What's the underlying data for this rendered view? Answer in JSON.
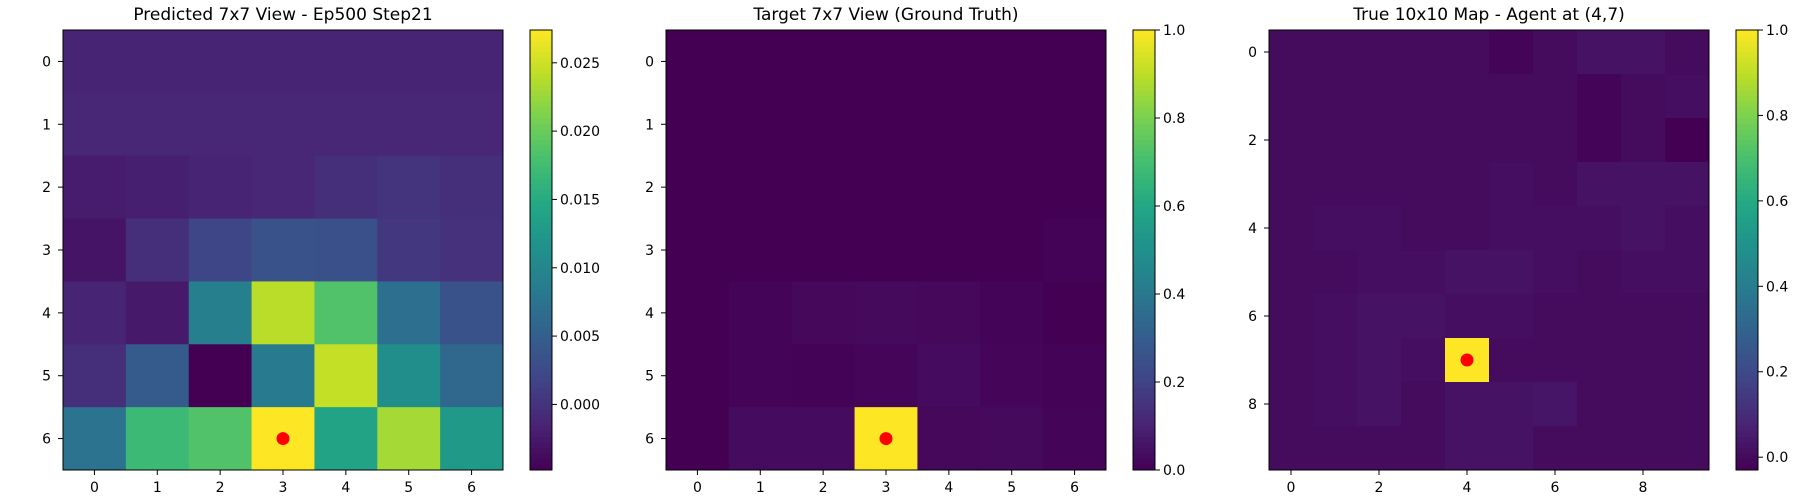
{
  "chart_data": [
    {
      "type": "heatmap",
      "title": "Predicted 7x7 View - Ep500 Step21",
      "xticks": [
        0,
        1,
        2,
        3,
        4,
        5,
        6
      ],
      "yticks": [
        0,
        1,
        2,
        3,
        4,
        5,
        6
      ],
      "colorbar": {
        "vmin": -0.0048,
        "vmax": 0.0274,
        "ticks": [
          0.0,
          0.005,
          0.01,
          0.015,
          0.02,
          0.025
        ],
        "tick_labels": [
          "0.000",
          "0.005",
          "0.010",
          "0.015",
          "0.020",
          "0.025"
        ]
      },
      "values": [
        [
          -0.0015,
          -0.0015,
          -0.0015,
          -0.0015,
          -0.0015,
          -0.0015,
          -0.0015
        ],
        [
          -0.0012,
          -0.0012,
          -0.0012,
          -0.0012,
          -0.0012,
          -0.0012,
          -0.0012
        ],
        [
          -0.0022,
          -0.002,
          -0.0015,
          -0.0012,
          -0.0005,
          0.0,
          -0.0005
        ],
        [
          -0.003,
          -0.0005,
          0.002,
          0.0035,
          0.0032,
          0.0005,
          -0.0002
        ],
        [
          -0.0015,
          -0.0025,
          0.009,
          0.024,
          0.0185,
          0.007,
          0.0035
        ],
        [
          -0.0005,
          0.0045,
          -0.0048,
          0.0085,
          0.0245,
          0.011,
          0.006
        ],
        [
          0.0075,
          0.017,
          0.0185,
          0.0274,
          0.014,
          0.023,
          0.0125
        ]
      ],
      "marker": {
        "col": 3,
        "row": 6,
        "color": "#ff0000"
      }
    },
    {
      "type": "heatmap",
      "title": "Target 7x7 View (Ground Truth)",
      "xticks": [
        0,
        1,
        2,
        3,
        4,
        5,
        6
      ],
      "yticks": [
        0,
        1,
        2,
        3,
        4,
        5,
        6
      ],
      "colorbar": {
        "vmin": 0.0,
        "vmax": 1.0,
        "ticks": [
          0.0,
          0.2,
          0.4,
          0.6,
          0.8,
          1.0
        ],
        "tick_labels": [
          "0.0",
          "0.2",
          "0.4",
          "0.6",
          "0.8",
          "1.0"
        ]
      },
      "values": [
        [
          0.0,
          0.0,
          0.0,
          0.0,
          0.0,
          0.0,
          0.0
        ],
        [
          0.0,
          0.0,
          0.0,
          0.0,
          0.0,
          0.0,
          0.0
        ],
        [
          0.0,
          0.0,
          0.0,
          0.0,
          0.0,
          0.0,
          0.0
        ],
        [
          0.0,
          0.0,
          0.0,
          0.0,
          0.0,
          0.0,
          0.005
        ],
        [
          0.0,
          0.01,
          0.02,
          0.025,
          0.02,
          0.01,
          0.0
        ],
        [
          0.0,
          0.01,
          0.005,
          0.015,
          0.03,
          0.015,
          0.005
        ],
        [
          0.0,
          0.03,
          0.03,
          1.0,
          0.02,
          0.025,
          0.01
        ]
      ],
      "marker": {
        "col": 3,
        "row": 6,
        "color": "#ff0000"
      }
    },
    {
      "type": "heatmap",
      "title": "True 10x10 Map - Agent at (4,7)",
      "xticks": [
        0,
        2,
        4,
        6,
        8
      ],
      "yticks": [
        0,
        2,
        4,
        6,
        8
      ],
      "colorbar": {
        "vmin": -0.03,
        "vmax": 1.0,
        "ticks": [
          0.0,
          0.2,
          0.4,
          0.6,
          0.8,
          1.0
        ],
        "tick_labels": [
          "0.0",
          "0.2",
          "0.4",
          "0.6",
          "0.8",
          "1.0"
        ]
      },
      "values": [
        [
          0.0,
          0.0,
          0.0,
          0.0,
          0.0,
          -0.02,
          0.0,
          0.02,
          0.02,
          0.0
        ],
        [
          0.0,
          0.0,
          0.0,
          0.0,
          0.0,
          0.0,
          0.0,
          -0.02,
          0.0,
          0.01
        ],
        [
          0.0,
          0.0,
          0.0,
          0.0,
          0.0,
          0.0,
          0.0,
          -0.02,
          0.0,
          -0.03
        ],
        [
          0.0,
          0.0,
          0.0,
          0.0,
          0.0,
          0.01,
          0.0,
          0.02,
          0.02,
          0.02
        ],
        [
          0.0,
          0.01,
          0.01,
          0.0,
          0.0,
          0.01,
          0.01,
          0.01,
          0.02,
          0.01
        ],
        [
          0.0,
          0.0,
          0.01,
          0.01,
          0.02,
          0.02,
          0.01,
          0.0,
          0.01,
          0.01
        ],
        [
          0.0,
          0.01,
          0.02,
          0.02,
          0.01,
          0.01,
          0.0,
          0.0,
          0.0,
          0.0
        ],
        [
          0.0,
          0.01,
          0.02,
          0.01,
          1.0,
          0.0,
          0.0,
          0.0,
          0.0,
          0.0
        ],
        [
          0.0,
          0.01,
          0.02,
          0.0,
          0.02,
          0.02,
          0.03,
          0.0,
          0.0,
          0.0
        ],
        [
          0.0,
          0.0,
          0.0,
          0.0,
          0.02,
          0.02,
          0.0,
          0.0,
          0.0,
          0.0
        ]
      ],
      "marker": {
        "col": 4,
        "row": 7,
        "color": "#ff0000"
      }
    }
  ]
}
